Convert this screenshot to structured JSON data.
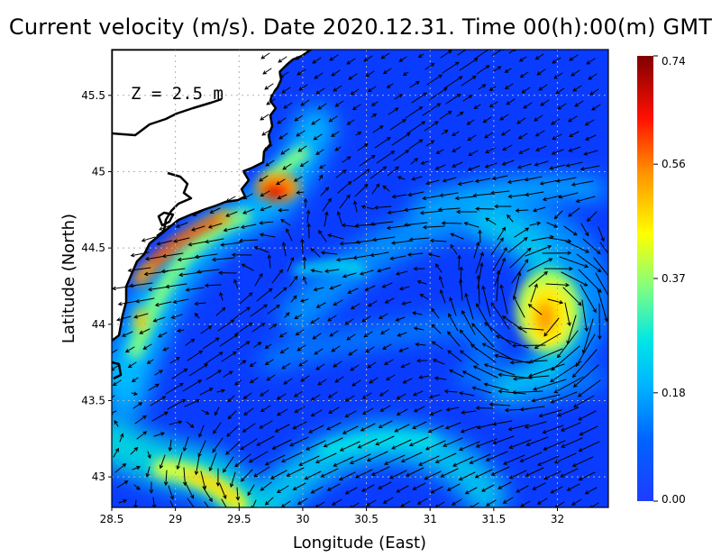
{
  "title": "Current velocity (m/s). Date 2020.12.31. Time 00(h):00(m) GMT",
  "depth_label": "Z = 2.5 m",
  "x_axis": {
    "label": "Longitude (East)",
    "range": [
      28.5,
      32.4
    ],
    "ticks": [
      "28.5",
      "29",
      "29.5",
      "30",
      "30.5",
      "31",
      "31.5",
      "32"
    ]
  },
  "y_axis": {
    "label": "Latitude (North)",
    "range": [
      42.8,
      45.8
    ],
    "ticks": [
      "43",
      "43.5",
      "44",
      "44.5",
      "45",
      "45.5"
    ]
  },
  "colorbar": {
    "ticks": [
      "0.74",
      "0.56",
      "0.37",
      "0.18",
      "0.00"
    ],
    "range": [
      0,
      0.74
    ],
    "colors": [
      "#1e3cff",
      "#00a0ff",
      "#00e0e0",
      "#80ff80",
      "#ffff00",
      "#ff8000",
      "#ff0000",
      "#800000"
    ]
  },
  "map": {
    "grid": true,
    "land_color": "#ffffff",
    "sea_low_color": "#0a3cff",
    "coastline_color": "#000000"
  }
}
